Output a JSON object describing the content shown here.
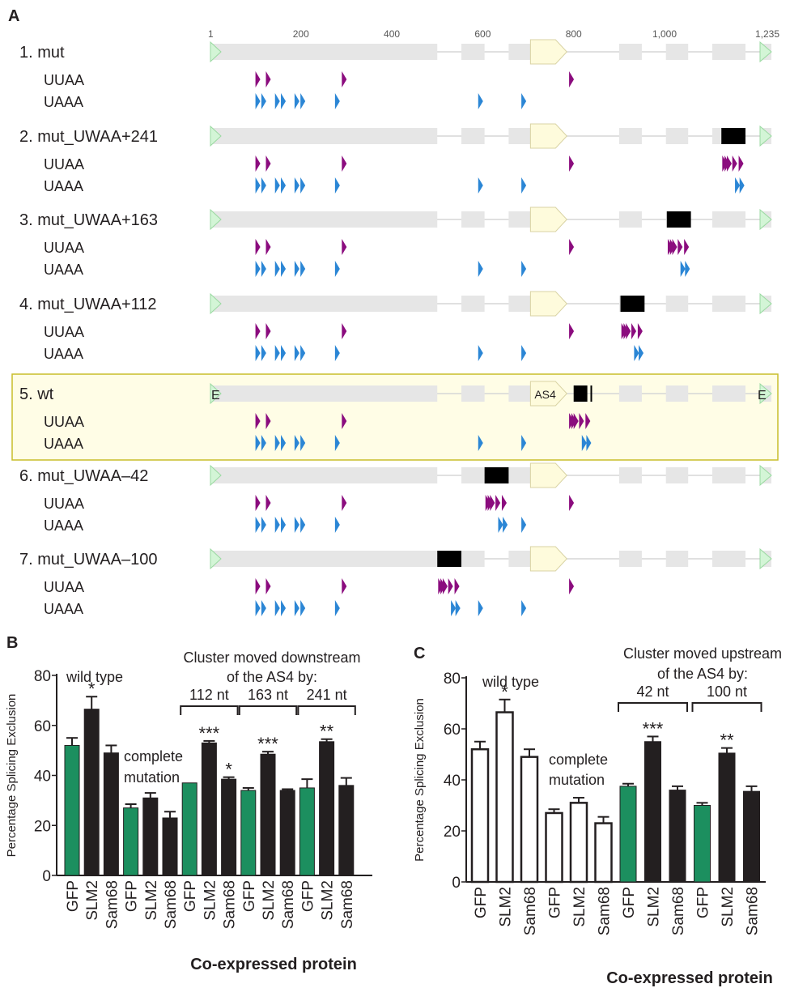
{
  "panel_a": {
    "label": "A",
    "scale_ticks": [
      {
        "text": "1",
        "value": 1
      },
      {
        "text": "200",
        "value": 200
      },
      {
        "text": "400",
        "value": 400
      },
      {
        "text": "600",
        "value": 600
      },
      {
        "text": "800",
        "value": 800
      },
      {
        "text": "1,000",
        "value": 1000
      },
      {
        "text": "1,235",
        "value": 1235
      }
    ],
    "motif_labels": [
      "UUAA",
      "UAAA"
    ],
    "base_uuaa": [
      100,
      123,
      290,
      790
    ],
    "base_uaaa": [
      100,
      113,
      143,
      156,
      186,
      199,
      275,
      590,
      685
    ],
    "cluster_uuaa": [
      0,
      5,
      10,
      22,
      36
    ],
    "cluster_uaaa": [
      28,
      38
    ],
    "element_labels": {
      "exon": "E",
      "as4": "AS4"
    },
    "rows": [
      {
        "label": "1. mut",
        "highlight": false,
        "block": null,
        "uuaa_cluster": null,
        "uaaa_cluster": null,
        "remove_uuaa": [],
        "remove_uaaa": []
      },
      {
        "label": "2. mut_UWAA+241",
        "highlight": false,
        "block": [
          1125,
          1178
        ],
        "uuaa_cluster": 1127,
        "uaaa_cluster": 1127,
        "remove_uuaa": [],
        "remove_uaaa": []
      },
      {
        "label": "3. mut_UWAA+163",
        "highlight": false,
        "block": [
          1005,
          1058
        ],
        "uuaa_cluster": 1007,
        "uaaa_cluster": 1007,
        "remove_uuaa": [],
        "remove_uaaa": []
      },
      {
        "label": "4. mut_UWAA+112",
        "highlight": false,
        "block": [
          903,
          956
        ],
        "uuaa_cluster": 905,
        "uaaa_cluster": 905,
        "remove_uuaa": [],
        "remove_uaaa": []
      },
      {
        "label": "5. wt",
        "highlight": true,
        "block": null,
        "uuaa_cluster": 790,
        "uaaa_cluster": 790,
        "remove_uuaa": [
          790
        ],
        "remove_uaaa": []
      },
      {
        "label": "6. mut_UWAA–42",
        "highlight": false,
        "block": [
          604,
          657
        ],
        "uuaa_cluster": 606,
        "uaaa_cluster": 606,
        "remove_uuaa": [],
        "remove_uaaa": [
          590
        ]
      },
      {
        "label": "7. mut_UWAA–100",
        "highlight": false,
        "block": [
          500,
          553
        ],
        "uuaa_cluster": 502,
        "uaaa_cluster": 502,
        "remove_uuaa": [],
        "remove_uaaa": []
      }
    ],
    "colors": {
      "uuaa": "#8b0c7e",
      "uaaa": "#2b86d5",
      "highlight_bg": "#fffde6",
      "highlight_border": "#c8bd2a",
      "track": "#e6e6e6",
      "as4_fill": "#fefbdc",
      "exon_fill": "#d3f5d6"
    }
  },
  "chart_data": [
    {
      "panel": "B",
      "type": "bar",
      "ylabel": "Percentage Splicing Exclusion",
      "xlabel": "Co-expressed protein",
      "ylim": [
        0,
        80
      ],
      "yticks": [
        0,
        20,
        40,
        60,
        80
      ],
      "categories": [
        "GFP",
        "SLM2",
        "Sam68",
        "GFP",
        "SLM2",
        "Sam68",
        "GFP",
        "SLM2",
        "Sam68",
        "GFP",
        "SLM2",
        "Sam68",
        "GFP",
        "SLM2",
        "Sam68"
      ],
      "values": [
        52,
        66.5,
        49,
        27,
        31,
        23,
        37,
        53,
        38.5,
        34,
        48.5,
        34,
        35,
        53.5,
        36
      ],
      "errors": [
        3,
        5,
        3,
        1.5,
        2,
        2.5,
        0,
        0.8,
        0.8,
        1,
        1,
        0.5,
        3.5,
        1,
        3
      ],
      "bar_colors": [
        "#1c8f5f",
        "#231f20",
        "#231f20",
        "#1c8f5f",
        "#231f20",
        "#231f20",
        "#1c8f5f",
        "#231f20",
        "#231f20",
        "#1c8f5f",
        "#231f20",
        "#231f20",
        "#1c8f5f",
        "#231f20",
        "#231f20"
      ],
      "significance": [
        "",
        "*",
        "",
        "",
        "",
        "",
        "",
        "***",
        "*",
        "",
        "***",
        "",
        "",
        "**",
        ""
      ],
      "annotations": [
        "wild type",
        "complete",
        "mutation",
        "Cluster moved downstream",
        "of the AS4 by:"
      ],
      "bracket_labels": [
        "112 nt",
        "163 nt",
        "241 nt"
      ]
    },
    {
      "panel": "C",
      "type": "bar",
      "ylabel": "Percentage Splicing Exclusion",
      "xlabel": "Co-expressed protein",
      "ylim": [
        0,
        80
      ],
      "yticks": [
        0,
        20,
        40,
        60,
        80
      ],
      "categories": [
        "GFP",
        "SLM2",
        "Sam68",
        "GFP",
        "SLM2",
        "Sam68",
        "GFP",
        "SLM2",
        "Sam68",
        "GFP",
        "SLM2",
        "Sam68"
      ],
      "values": [
        52,
        66.5,
        49,
        27,
        31,
        23,
        37.5,
        55,
        36,
        30,
        50.5,
        35.5
      ],
      "errors": [
        3,
        5,
        3,
        1.5,
        2,
        2.5,
        1,
        2,
        1.5,
        1,
        2,
        2
      ],
      "bar_colors": [
        "#ffffff",
        "#ffffff",
        "#ffffff",
        "#ffffff",
        "#ffffff",
        "#ffffff",
        "#1c8f5f",
        "#231f20",
        "#231f20",
        "#1c8f5f",
        "#231f20",
        "#231f20"
      ],
      "significance": [
        "",
        "*",
        "",
        "",
        "",
        "",
        "",
        "***",
        "",
        "",
        "**",
        ""
      ],
      "annotations": [
        "wild type",
        "complete",
        "mutation",
        "Cluster moved upstream",
        "of the AS4 by:"
      ],
      "bracket_labels": [
        "42 nt",
        "100 nt"
      ]
    }
  ],
  "panel_labels": {
    "b": "B",
    "c": "C"
  }
}
